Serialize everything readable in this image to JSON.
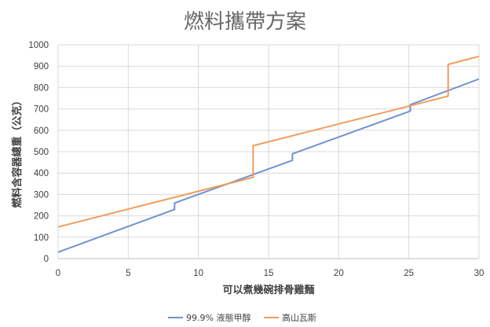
{
  "chart_data": {
    "type": "line",
    "title": "燃料攜帶方案",
    "xlabel": "可以煮幾碗排骨雞麵",
    "ylabel": "燃料含容器總重（公克）",
    "xlim": [
      0,
      30
    ],
    "ylim": [
      0,
      1000
    ],
    "x_ticks": [
      "0",
      "5",
      "10",
      "15",
      "20",
      "25",
      "30"
    ],
    "y_ticks": [
      "0",
      "100",
      "200",
      "300",
      "400",
      "500",
      "600",
      "700",
      "800",
      "900",
      "1000"
    ],
    "grid": true,
    "legend_position": "bottom",
    "series": [
      {
        "name": "99.9% 液態甲醇",
        "color": "#6f93cf",
        "points": [
          [
            0,
            30
          ],
          [
            8.3,
            230
          ],
          [
            8.3,
            260
          ],
          [
            16.7,
            460
          ],
          [
            16.7,
            490
          ],
          [
            25.1,
            690
          ],
          [
            25.1,
            720
          ],
          [
            30,
            840
          ]
        ]
      },
      {
        "name": "高山瓦斯",
        "color": "#f19c5c",
        "points": [
          [
            0,
            148
          ],
          [
            13.9,
            380
          ],
          [
            13.9,
            528
          ],
          [
            27.8,
            760
          ],
          [
            27.8,
            908
          ],
          [
            30,
            946
          ]
        ]
      }
    ]
  }
}
